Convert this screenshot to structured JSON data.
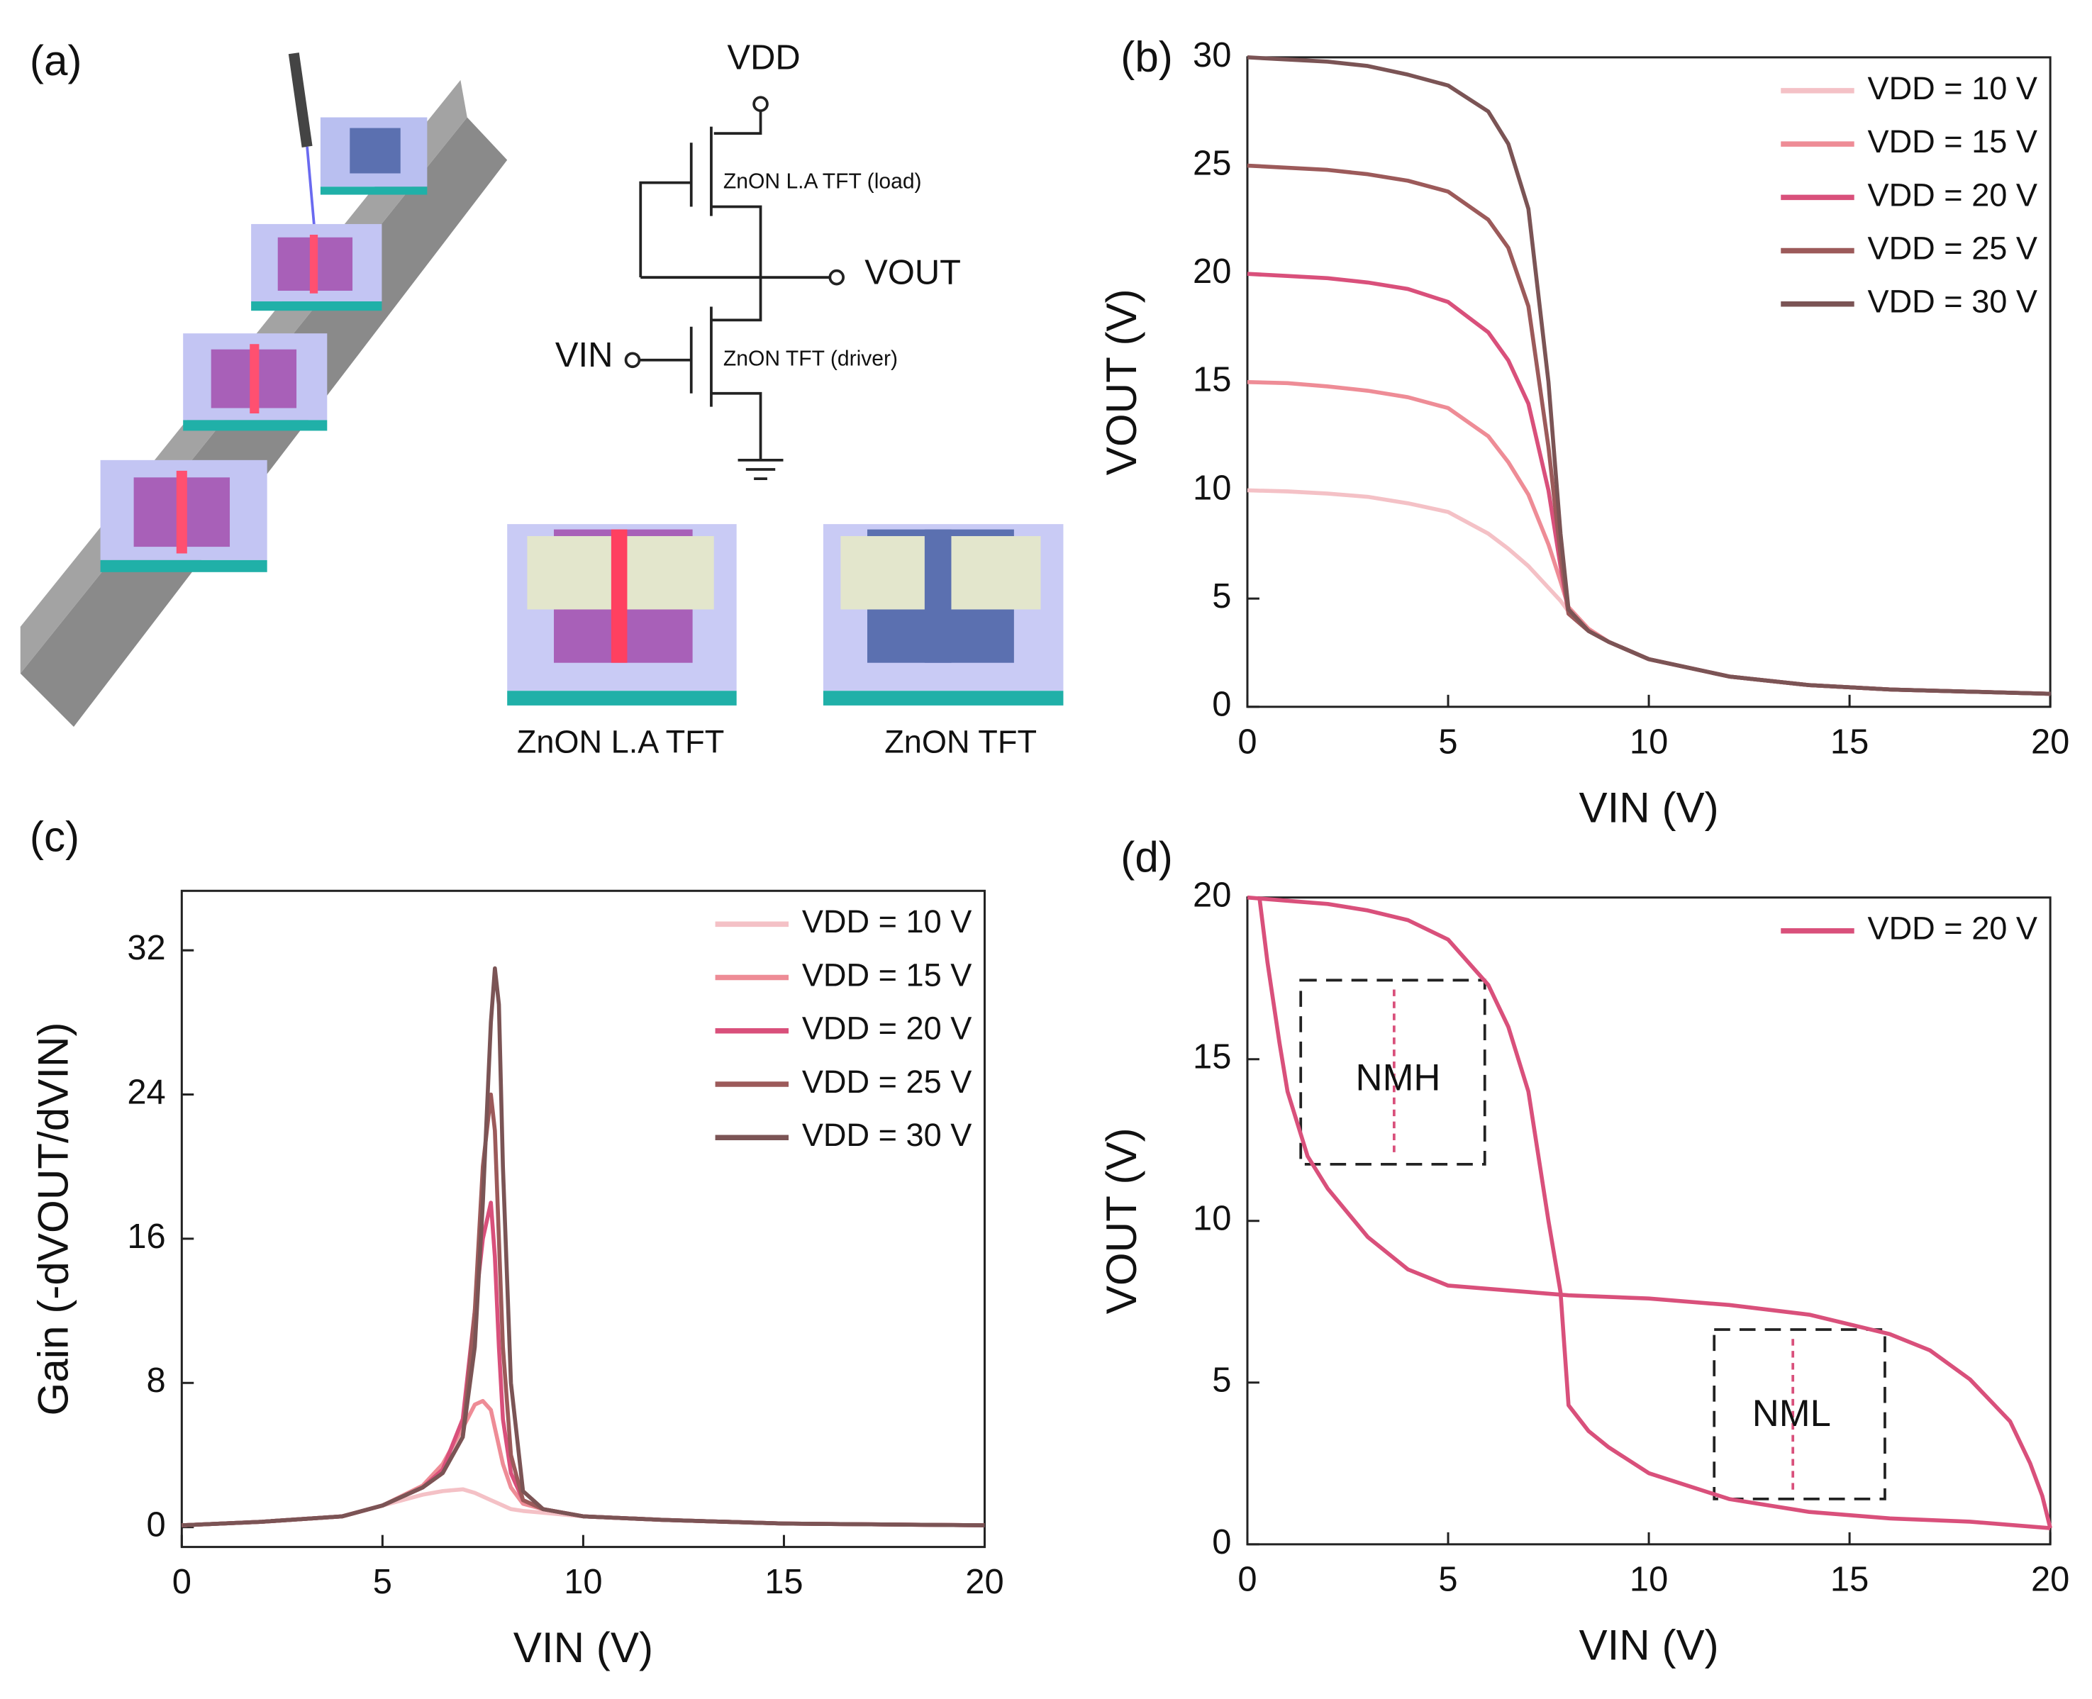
{
  "diagram": {
    "label": "(a)",
    "vdd": "VDD",
    "load_label": "ZnON L.A TFT (load)",
    "vout": "VOUT",
    "vin": "VIN",
    "driver_label": "ZnON TFT (driver)",
    "device_left": "ZnON L.A TFT",
    "device_right": "ZnON TFT"
  },
  "chart_data": [
    {
      "type": "line",
      "label": "(b)",
      "x_label": "VIN (V)",
      "y_label": "VOUT (V)",
      "x": [
        0,
        1,
        2,
        3,
        4,
        5,
        6,
        6.5,
        7,
        7.5,
        7.8,
        8,
        8.5,
        9,
        10,
        12,
        14,
        16,
        18,
        20
      ],
      "series": [
        {
          "name": "VDD = 10 V",
          "color": "#f4c1c6",
          "values": [
            10,
            9.95,
            9.85,
            9.7,
            9.4,
            9,
            8,
            7.3,
            6.5,
            5.5,
            4.9,
            4.4,
            3.6,
            3,
            2.2,
            1.4,
            1,
            0.8,
            0.7,
            0.6
          ]
        },
        {
          "name": "VDD = 15 V",
          "color": "#ee8c96",
          "values": [
            15,
            14.95,
            14.8,
            14.6,
            14.3,
            13.8,
            12.5,
            11.3,
            9.8,
            7.5,
            5.8,
            4.6,
            3.6,
            3,
            2.2,
            1.4,
            1,
            0.8,
            0.7,
            0.6
          ]
        },
        {
          "name": "VDD = 20 V",
          "color": "#d9507b",
          "values": [
            20,
            19.9,
            19.8,
            19.6,
            19.3,
            18.7,
            17.3,
            16,
            14,
            10,
            6.5,
            4.3,
            3.5,
            3,
            2.2,
            1.4,
            1,
            0.8,
            0.7,
            0.6
          ]
        },
        {
          "name": "VDD = 25 V",
          "color": "#9c5a5a",
          "values": [
            25,
            24.9,
            24.8,
            24.6,
            24.3,
            23.8,
            22.5,
            21.2,
            18.5,
            12,
            7,
            4.3,
            3.5,
            3,
            2.2,
            1.4,
            1,
            0.8,
            0.7,
            0.6
          ]
        },
        {
          "name": "VDD = 30 V",
          "color": "#7b5455",
          "values": [
            30,
            29.9,
            29.8,
            29.6,
            29.2,
            28.7,
            27.5,
            26,
            23,
            15,
            8,
            4.5,
            3.5,
            3,
            2.2,
            1.4,
            1,
            0.8,
            0.7,
            0.6
          ]
        }
      ],
      "xlim": [
        0,
        20
      ],
      "xticks": [
        0,
        5,
        10,
        15,
        20
      ],
      "ylim": [
        0,
        30
      ],
      "yticks": [
        0,
        5,
        10,
        15,
        20,
        25,
        30
      ],
      "legend": "upper right"
    },
    {
      "type": "line",
      "label": "(c)",
      "x_label": "VIN (V)",
      "y_label": "Gain (-dVOUT/dVIN)",
      "x": [
        0,
        2,
        4,
        5,
        6,
        6.5,
        7,
        7.3,
        7.5,
        7.7,
        7.8,
        7.9,
        8,
        8.2,
        8.5,
        9,
        10,
        12,
        15,
        20
      ],
      "series": [
        {
          "name": "VDD = 10 V",
          "color": "#f4c1c6",
          "values": [
            0.1,
            0.3,
            0.6,
            1.2,
            1.8,
            2,
            2.1,
            1.9,
            1.7,
            1.5,
            1.4,
            1.3,
            1.2,
            1,
            0.9,
            0.8,
            0.6,
            0.4,
            0.2,
            0.1
          ]
        },
        {
          "name": "VDD = 15 V",
          "color": "#ee8c96",
          "values": [
            0.1,
            0.3,
            0.6,
            1.2,
            2.3,
            3.5,
            5.5,
            6.8,
            7,
            6.5,
            5.5,
            4.5,
            3.5,
            2.2,
            1.3,
            1,
            0.6,
            0.4,
            0.2,
            0.1
          ]
        },
        {
          "name": "VDD = 20 V",
          "color": "#d9507b",
          "values": [
            0.1,
            0.3,
            0.6,
            1.2,
            2.2,
            3.2,
            6,
            12,
            16,
            18,
            15,
            10,
            6,
            3,
            1.5,
            1,
            0.6,
            0.4,
            0.2,
            0.1
          ]
        },
        {
          "name": "VDD = 25 V",
          "color": "#9c5a5a",
          "values": [
            0.1,
            0.3,
            0.6,
            1.2,
            2.2,
            3,
            5,
            12,
            20,
            24,
            22,
            16,
            10,
            4,
            1.5,
            1,
            0.6,
            0.4,
            0.2,
            0.1
          ]
        },
        {
          "name": "VDD = 30 V",
          "color": "#7b5455",
          "values": [
            0.1,
            0.3,
            0.6,
            1.2,
            2.2,
            3,
            5,
            10,
            18,
            28,
            31,
            29,
            20,
            8,
            2,
            1,
            0.6,
            0.4,
            0.2,
            0.1
          ]
        }
      ],
      "xlim": [
        0,
        20
      ],
      "xticks": [
        0,
        5,
        10,
        15,
        20
      ],
      "ylim": [
        -1.1,
        35.3
      ],
      "yticks": [
        0,
        8,
        16,
        24,
        32
      ],
      "legend": "upper right"
    },
    {
      "type": "line",
      "label": "(d)",
      "x_label": "VIN (V)",
      "y_label": "VOUT (V)",
      "series": [
        {
          "name": "VDD = 20 V",
          "color": "#d9507b",
          "x": [
            0,
            1,
            2,
            3,
            4,
            5,
            6,
            6.5,
            7,
            7.5,
            7.8,
            8,
            8.5,
            9,
            10,
            12,
            14,
            16,
            18,
            20
          ],
          "values": [
            20,
            19.9,
            19.8,
            19.6,
            19.3,
            18.7,
            17.3,
            16,
            14,
            10,
            7.8,
            4.3,
            3.5,
            3,
            2.2,
            1.4,
            1,
            0.8,
            0.7,
            0.5
          ]
        },
        {
          "color": "#d9507b",
          "x": [
            0.3,
            0.5,
            0.8,
            1,
            1.5,
            2,
            3,
            4,
            5,
            6,
            7,
            8,
            10,
            12,
            14,
            16,
            17,
            18,
            19,
            19.5,
            19.8,
            20
          ],
          "values": [
            20,
            18,
            15.5,
            14,
            12,
            11,
            9.5,
            8.5,
            8,
            7.9,
            7.8,
            7.7,
            7.6,
            7.4,
            7.1,
            6.5,
            6,
            5.1,
            3.8,
            2.5,
            1.5,
            0.5
          ]
        }
      ],
      "xlim": [
        0,
        20
      ],
      "xticks": [
        0,
        5,
        10,
        15,
        20
      ],
      "ylim": [
        0,
        20
      ],
      "yticks": [
        0,
        5,
        10,
        15,
        20
      ],
      "legend": "upper right",
      "annotations": [
        "NMH",
        "NML"
      ]
    }
  ]
}
